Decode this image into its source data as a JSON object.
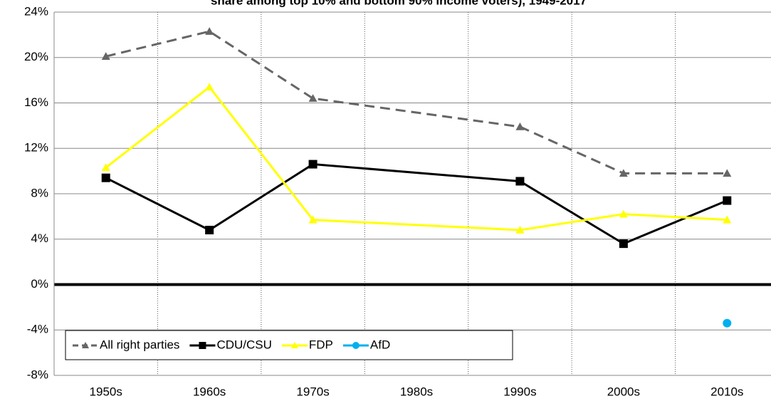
{
  "chart_data": {
    "type": "line",
    "title": "share among top 10% and bottom 90% income voters), 1949-2017",
    "categories": [
      "1950s",
      "1960s",
      "1970s",
      "1980s",
      "1990s",
      "2000s",
      "2010s"
    ],
    "series": [
      {
        "name": "All right parties",
        "color": "#666666",
        "dash": true,
        "marker": "triangle",
        "values": [
          20.1,
          22.3,
          16.4,
          null,
          13.9,
          9.8,
          9.8
        ]
      },
      {
        "name": "CDU/CSU",
        "color": "#000000",
        "dash": false,
        "marker": "square",
        "values": [
          9.4,
          4.8,
          10.6,
          null,
          9.1,
          3.6,
          7.4
        ]
      },
      {
        "name": "FDP",
        "color": "#ffff00",
        "dash": false,
        "marker": "triangle",
        "values": [
          10.3,
          17.4,
          5.7,
          null,
          4.8,
          6.2,
          5.7
        ]
      },
      {
        "name": "AfD",
        "color": "#00b0f0",
        "dash": false,
        "marker": "circle",
        "values": [
          null,
          null,
          null,
          null,
          null,
          null,
          -3.4
        ]
      }
    ],
    "span_gaps": true,
    "ylim": [
      -8,
      24
    ],
    "yticks": [
      {
        "value": -8,
        "label": "-8%"
      },
      {
        "value": -4,
        "label": "-4%"
      },
      {
        "value": 0,
        "label": "0%"
      },
      {
        "value": 4,
        "label": "4%"
      },
      {
        "value": 8,
        "label": "8%"
      },
      {
        "value": 12,
        "label": "12%"
      },
      {
        "value": 16,
        "label": "16%"
      },
      {
        "value": 20,
        "label": "20%"
      },
      {
        "value": 24,
        "label": "24%"
      }
    ],
    "grid": true,
    "legend": "lower left"
  }
}
